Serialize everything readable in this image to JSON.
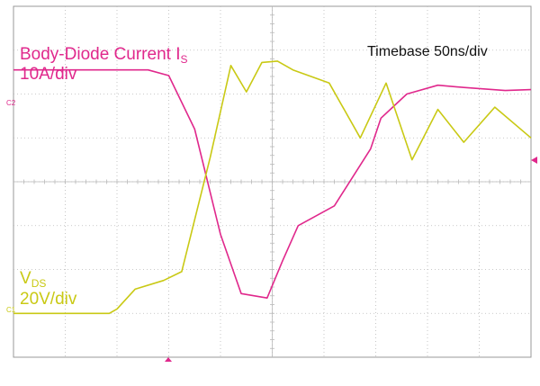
{
  "labels": {
    "current_title": "Body-Diode Current I",
    "current_sub": "S",
    "current_scale": "10A/div",
    "voltage_title": "V",
    "voltage_sub": "DS",
    "voltage_scale": "20V/div",
    "timebase": "Timebase 50ns/div",
    "ch2_marker": "C2",
    "ch1_marker": "C1"
  },
  "colors": {
    "current": "#e0288c",
    "voltage": "#c9c914",
    "grid": "#b9b9b9",
    "frame": "#999999"
  },
  "chart_data": {
    "type": "line",
    "title": "",
    "xlabel": "Timebase 50ns/div",
    "ylabel": "",
    "x_divisions": 10,
    "y_divisions": 8,
    "xlim": [
      0,
      10
    ],
    "ylim": [
      -4,
      4
    ],
    "series": [
      {
        "name": "Body-Diode Current I_S (10A/div)",
        "color": "#e0288c",
        "x": [
          0,
          1.5,
          2.6,
          3.0,
          3.5,
          4.0,
          4.4,
          4.9,
          5.2,
          5.5,
          6.2,
          6.9,
          7.1,
          7.6,
          8.2,
          8.7,
          9.5,
          10
        ],
        "y": [
          2.55,
          2.55,
          2.55,
          2.42,
          1.2,
          -1.2,
          -2.55,
          -2.65,
          -1.8,
          -1.0,
          -0.55,
          0.75,
          1.45,
          2.0,
          2.2,
          2.15,
          2.08,
          2.1
        ]
      },
      {
        "name": "V_DS (20V/div)",
        "color": "#c9c914",
        "x": [
          0,
          1.85,
          2.0,
          2.35,
          2.9,
          3.25,
          3.8,
          4.2,
          4.5,
          4.8,
          5.1,
          5.4,
          6.1,
          6.7,
          7.2,
          7.7,
          8.2,
          8.7,
          9.3,
          10
        ],
        "y": [
          -3.0,
          -3.0,
          -2.9,
          -2.45,
          -2.25,
          -2.05,
          0.55,
          2.65,
          2.05,
          2.72,
          2.75,
          2.55,
          2.25,
          1.0,
          2.25,
          0.5,
          1.65,
          0.9,
          1.7,
          1.0
        ]
      }
    ]
  }
}
